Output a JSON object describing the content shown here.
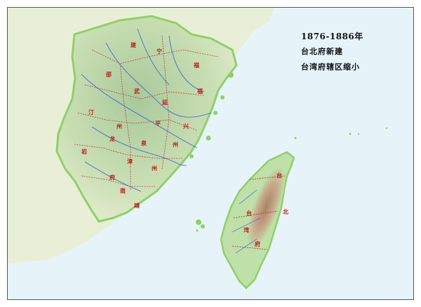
{
  "map": {
    "title_lines": [
      "1876-1886年",
      "台北府新建",
      "台湾府辖区缩小"
    ],
    "colors": {
      "sea": "#e6f4fa",
      "mainland_far": "#e9efd6",
      "fujian_land": "#c9dfb3",
      "fujian_coast": "#8fd06a",
      "taiwan_land": "#bfe0a8",
      "taiwan_mountain": "#c9a58a",
      "river": "#3a5fd8",
      "boundary": "#b3262b",
      "label_red": "#c21a1a"
    }
  }
}
